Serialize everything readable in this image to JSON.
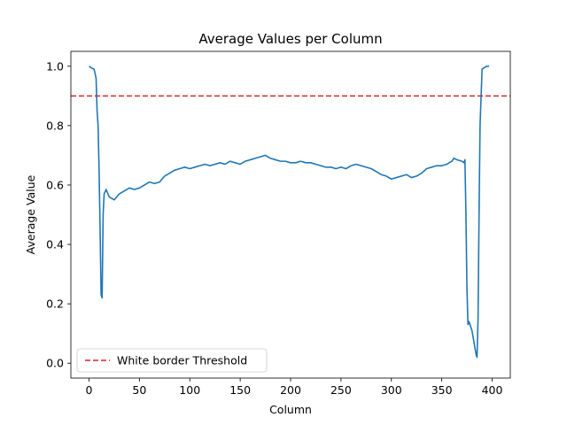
{
  "chart_data": {
    "type": "line",
    "title": "Average Values per Column",
    "xlabel": "Column",
    "ylabel": "Average Value",
    "xlim": [
      -18,
      418
    ],
    "ylim": [
      -0.05,
      1.05
    ],
    "xticks": [
      0,
      50,
      100,
      150,
      200,
      250,
      300,
      350,
      400
    ],
    "yticks": [
      0.0,
      0.2,
      0.4,
      0.6,
      0.8,
      1.0
    ],
    "grid": false,
    "legend_position": "lower-left",
    "threshold": {
      "name": "White border Threshold",
      "value": 0.9,
      "color": "#d62728",
      "style": "dashed"
    },
    "series": [
      {
        "color": "#1f77b4",
        "x": [
          0,
          2,
          5,
          7,
          8,
          9,
          10,
          11,
          12,
          13,
          14,
          15,
          17,
          20,
          25,
          30,
          35,
          40,
          45,
          50,
          55,
          60,
          65,
          70,
          75,
          80,
          85,
          90,
          95,
          100,
          105,
          110,
          115,
          120,
          125,
          130,
          135,
          140,
          145,
          150,
          155,
          160,
          165,
          170,
          175,
          180,
          185,
          190,
          195,
          200,
          205,
          210,
          215,
          220,
          225,
          230,
          235,
          240,
          245,
          250,
          255,
          260,
          265,
          270,
          275,
          280,
          285,
          290,
          295,
          300,
          305,
          310,
          315,
          320,
          325,
          330,
          335,
          340,
          345,
          350,
          355,
          360,
          362,
          365,
          370,
          372,
          373,
          374,
          375,
          376,
          377,
          378,
          380,
          382,
          384,
          385,
          386,
          387,
          388,
          390,
          392,
          395,
          397
        ],
        "y": [
          1.0,
          0.995,
          0.99,
          0.96,
          0.85,
          0.8,
          0.65,
          0.45,
          0.23,
          0.22,
          0.5,
          0.57,
          0.585,
          0.56,
          0.55,
          0.57,
          0.58,
          0.59,
          0.585,
          0.59,
          0.6,
          0.61,
          0.605,
          0.61,
          0.63,
          0.64,
          0.65,
          0.655,
          0.66,
          0.655,
          0.66,
          0.665,
          0.67,
          0.665,
          0.67,
          0.675,
          0.67,
          0.68,
          0.675,
          0.67,
          0.68,
          0.685,
          0.69,
          0.695,
          0.7,
          0.69,
          0.685,
          0.68,
          0.68,
          0.675,
          0.675,
          0.68,
          0.675,
          0.675,
          0.67,
          0.665,
          0.66,
          0.66,
          0.655,
          0.66,
          0.655,
          0.665,
          0.67,
          0.665,
          0.66,
          0.655,
          0.645,
          0.635,
          0.63,
          0.62,
          0.625,
          0.63,
          0.635,
          0.625,
          0.63,
          0.64,
          0.655,
          0.66,
          0.665,
          0.665,
          0.67,
          0.68,
          0.69,
          0.685,
          0.68,
          0.675,
          0.685,
          0.5,
          0.25,
          0.13,
          0.14,
          0.13,
          0.11,
          0.07,
          0.03,
          0.02,
          0.15,
          0.5,
          0.8,
          0.99,
          0.995,
          1.0,
          1.0
        ]
      }
    ]
  }
}
